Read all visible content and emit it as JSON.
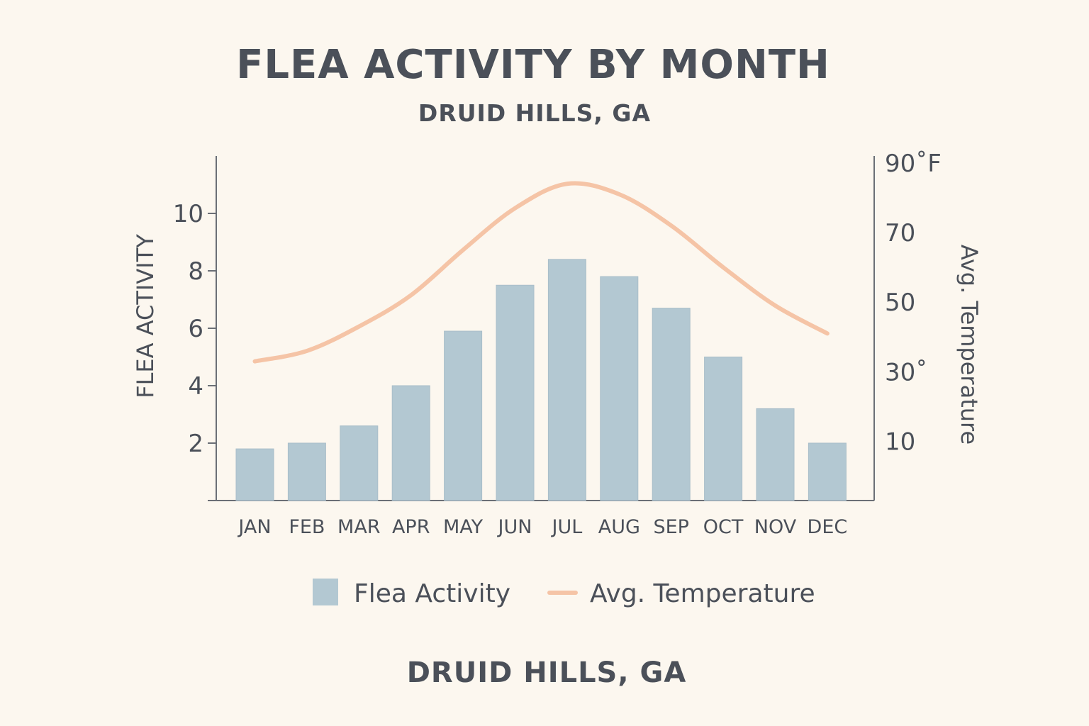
{
  "chart_data": {
    "type": "bar",
    "title": "FLEA ACTIVITY BY MONTH",
    "subtitle": "DRUID HILLS, GA",
    "footer": "DRUID HILLS, GA",
    "categories": [
      "JAN",
      "FEB",
      "MAR",
      "APR",
      "MAY",
      "JUN",
      "JUL",
      "AUG",
      "SEP",
      "OCT",
      "NOV",
      "DEC"
    ],
    "series": [
      {
        "name": "Flea Activity",
        "type": "bar",
        "axis": "left",
        "color": "#b3c8d2",
        "values": [
          1.8,
          2.0,
          2.6,
          4.0,
          5.9,
          7.5,
          8.4,
          7.8,
          6.7,
          5.0,
          3.2,
          2.0
        ]
      },
      {
        "name": "Avg. Temperature",
        "type": "line",
        "axis": "right",
        "color": "#f5c4a6",
        "values": [
          33,
          36,
          43,
          52,
          65,
          77,
          84,
          81,
          72,
          60,
          49,
          41
        ]
      }
    ],
    "ylabel": "FLEA ACTIVITY",
    "ylabel_right": "Avg. Temperature",
    "ylim": [
      0,
      12
    ],
    "ylim_right": [
      -7,
      92
    ],
    "yticks": [
      {
        "value": 10,
        "label": "10"
      },
      {
        "value": 8,
        "label": "8"
      },
      {
        "value": 6,
        "label": "6"
      },
      {
        "value": 4,
        "label": "4"
      },
      {
        "value": 2,
        "label": "2"
      },
      {
        "value": 0,
        "label": ""
      }
    ],
    "yticks_right": [
      {
        "value": 90,
        "label": "90˚F"
      },
      {
        "value": 70,
        "label": "70"
      },
      {
        "value": 50,
        "label": "50"
      },
      {
        "value": 30,
        "label": "30˚"
      },
      {
        "value": 10,
        "label": "10"
      }
    ],
    "legend": {
      "position": "bottom-center",
      "items": [
        {
          "label": "Flea Activity",
          "kind": "bar",
          "color": "#b3c8d2"
        },
        {
          "label": "Avg. Temperature",
          "kind": "line",
          "color": "#f5c4a6"
        }
      ]
    },
    "grid": false
  }
}
